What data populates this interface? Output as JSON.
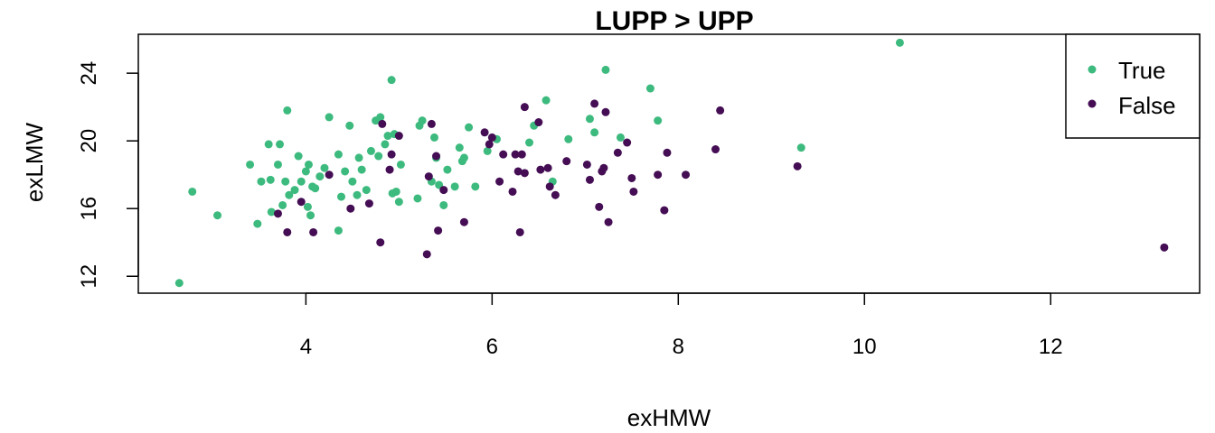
{
  "chart_data": {
    "type": "scatter",
    "title": "LUPP > UPP",
    "xlabel": "exHMW",
    "ylabel": "exLMW",
    "xlim": [
      2.2,
      13.6
    ],
    "ylim": [
      11,
      26.3
    ],
    "xticks": [
      4,
      6,
      8,
      10,
      12
    ],
    "yticks": [
      12,
      16,
      20,
      24
    ],
    "xtick_labels": [
      "4",
      "6",
      "8",
      "10",
      "12"
    ],
    "ytick_labels": [
      "12",
      "16",
      "20",
      "24"
    ],
    "legend": {
      "placement": "top-right",
      "entries": [
        {
          "label": "True",
          "color": "#3dba7e"
        },
        {
          "label": "False",
          "color": "#440d54"
        }
      ]
    },
    "series": [
      {
        "name": "True",
        "color": "#3dba7e",
        "points": [
          [
            2.64,
            11.6
          ],
          [
            2.78,
            17.0
          ],
          [
            3.05,
            15.6
          ],
          [
            3.4,
            18.6
          ],
          [
            3.48,
            15.1
          ],
          [
            3.52,
            17.6
          ],
          [
            3.6,
            19.8
          ],
          [
            3.62,
            17.7
          ],
          [
            3.63,
            15.8
          ],
          [
            3.7,
            18.6
          ],
          [
            3.72,
            19.8
          ],
          [
            3.75,
            16.2
          ],
          [
            3.78,
            17.6
          ],
          [
            3.8,
            21.8
          ],
          [
            3.82,
            16.8
          ],
          [
            3.88,
            17.1
          ],
          [
            3.92,
            19.1
          ],
          [
            3.95,
            17.6
          ],
          [
            4.0,
            18.2
          ],
          [
            4.02,
            16.1
          ],
          [
            4.03,
            18.6
          ],
          [
            4.05,
            15.6
          ],
          [
            4.07,
            17.3
          ],
          [
            4.1,
            17.2
          ],
          [
            4.15,
            17.9
          ],
          [
            4.2,
            18.4
          ],
          [
            4.25,
            21.4
          ],
          [
            4.35,
            19.2
          ],
          [
            4.35,
            14.7
          ],
          [
            4.38,
            16.7
          ],
          [
            4.42,
            18.2
          ],
          [
            4.47,
            20.9
          ],
          [
            4.5,
            17.6
          ],
          [
            4.55,
            16.8
          ],
          [
            4.57,
            19.0
          ],
          [
            4.6,
            18.3
          ],
          [
            4.65,
            17.1
          ],
          [
            4.7,
            19.4
          ],
          [
            4.75,
            21.2
          ],
          [
            4.78,
            19.1
          ],
          [
            4.8,
            21.4
          ],
          [
            4.85,
            19.8
          ],
          [
            4.88,
            20.3
          ],
          [
            4.92,
            23.6
          ],
          [
            4.93,
            16.9
          ],
          [
            4.95,
            20.4
          ],
          [
            4.97,
            17.0
          ],
          [
            5.0,
            16.4
          ],
          [
            5.02,
            18.6
          ],
          [
            5.2,
            16.6
          ],
          [
            5.22,
            20.9
          ],
          [
            5.25,
            21.2
          ],
          [
            5.35,
            17.6
          ],
          [
            5.38,
            20.2
          ],
          [
            5.4,
            19.0
          ],
          [
            5.43,
            17.4
          ],
          [
            5.48,
            16.2
          ],
          [
            5.52,
            18.3
          ],
          [
            5.6,
            17.3
          ],
          [
            5.65,
            19.6
          ],
          [
            5.68,
            18.8
          ],
          [
            5.7,
            19.0
          ],
          [
            5.75,
            20.8
          ],
          [
            5.82,
            17.3
          ],
          [
            5.95,
            19.4
          ],
          [
            6.05,
            20.1
          ],
          [
            6.4,
            19.9
          ],
          [
            6.45,
            20.9
          ],
          [
            6.58,
            22.4
          ],
          [
            6.65,
            17.6
          ],
          [
            6.82,
            20.1
          ],
          [
            7.05,
            21.3
          ],
          [
            7.1,
            20.5
          ],
          [
            7.22,
            24.2
          ],
          [
            7.38,
            20.2
          ],
          [
            7.7,
            23.1
          ],
          [
            7.78,
            21.2
          ],
          [
            9.32,
            19.6
          ],
          [
            10.38,
            25.8
          ]
        ]
      },
      {
        "name": "False",
        "color": "#440d54",
        "points": [
          [
            3.7,
            15.7
          ],
          [
            3.8,
            14.6
          ],
          [
            3.95,
            16.4
          ],
          [
            4.08,
            14.6
          ],
          [
            4.25,
            18.0
          ],
          [
            4.48,
            16.0
          ],
          [
            4.68,
            16.3
          ],
          [
            4.8,
            14.0
          ],
          [
            4.82,
            21.0
          ],
          [
            4.9,
            18.3
          ],
          [
            4.92,
            19.2
          ],
          [
            5.0,
            20.3
          ],
          [
            5.3,
            13.3
          ],
          [
            5.32,
            17.9
          ],
          [
            5.35,
            21.0
          ],
          [
            5.4,
            19.1
          ],
          [
            5.42,
            14.7
          ],
          [
            5.48,
            17.1
          ],
          [
            5.7,
            15.2
          ],
          [
            5.92,
            20.5
          ],
          [
            5.97,
            19.8
          ],
          [
            6.0,
            20.2
          ],
          [
            6.08,
            17.6
          ],
          [
            6.12,
            19.2
          ],
          [
            6.22,
            17.0
          ],
          [
            6.25,
            19.2
          ],
          [
            6.28,
            18.2
          ],
          [
            6.3,
            14.6
          ],
          [
            6.32,
            19.2
          ],
          [
            6.35,
            18.1
          ],
          [
            6.35,
            22.0
          ],
          [
            6.5,
            21.1
          ],
          [
            6.52,
            18.3
          ],
          [
            6.6,
            18.4
          ],
          [
            6.62,
            17.3
          ],
          [
            6.68,
            16.8
          ],
          [
            6.8,
            18.8
          ],
          [
            7.02,
            18.6
          ],
          [
            7.05,
            17.7
          ],
          [
            7.1,
            22.2
          ],
          [
            7.15,
            16.1
          ],
          [
            7.18,
            18.2
          ],
          [
            7.2,
            18.4
          ],
          [
            7.22,
            21.7
          ],
          [
            7.25,
            15.2
          ],
          [
            7.35,
            19.3
          ],
          [
            7.45,
            19.9
          ],
          [
            7.5,
            17.8
          ],
          [
            7.52,
            17.0
          ],
          [
            7.78,
            18.0
          ],
          [
            7.85,
            15.9
          ],
          [
            7.88,
            19.3
          ],
          [
            8.08,
            18.0
          ],
          [
            8.4,
            19.5
          ],
          [
            8.45,
            21.8
          ],
          [
            9.28,
            18.5
          ],
          [
            13.22,
            13.7
          ]
        ]
      }
    ]
  }
}
